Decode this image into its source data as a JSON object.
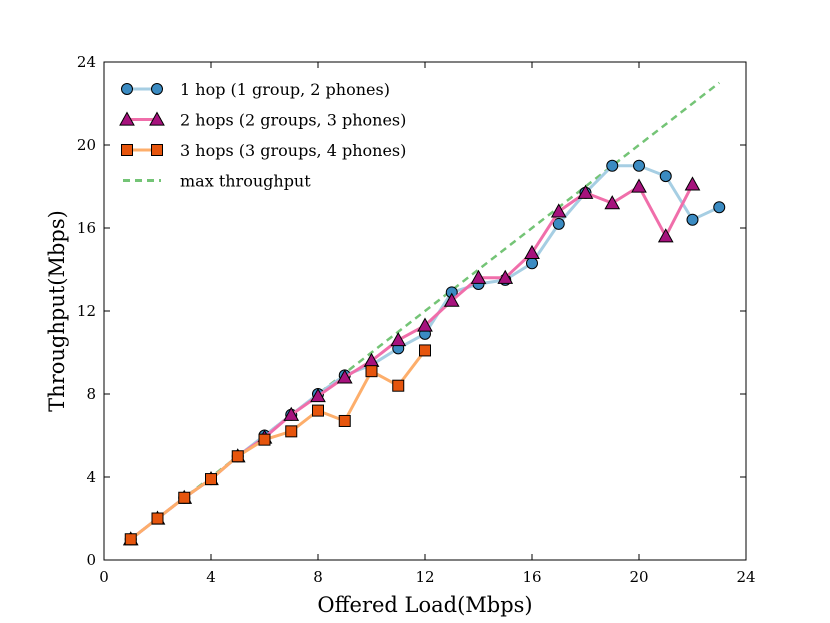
{
  "chart_data": {
    "type": "line",
    "title": "",
    "xlabel": "Offered Load(Mbps)",
    "ylabel": "Throughput(Mbps)",
    "xlim": [
      0,
      24
    ],
    "ylim": [
      0,
      24
    ],
    "xticks": [
      0,
      4,
      8,
      12,
      16,
      20,
      24
    ],
    "yticks": [
      0,
      4,
      8,
      12,
      16,
      20,
      24
    ],
    "grid": false,
    "legend_position": "top-left",
    "series": [
      {
        "name": "1 hop (1 group, 2 phones)",
        "line_color": "#a6cee3",
        "marker": "circle",
        "marker_color": "#3b8bc2",
        "dashed": false,
        "x": [
          1,
          2,
          3,
          4,
          5,
          6,
          7,
          8,
          9,
          10,
          11,
          12,
          13,
          14,
          15,
          16,
          17,
          18,
          19,
          20,
          21,
          22,
          23
        ],
        "y": [
          1.0,
          2.0,
          3.0,
          3.9,
          5.0,
          6.0,
          7.0,
          8.0,
          8.9,
          9.4,
          10.2,
          10.9,
          12.9,
          13.3,
          13.5,
          14.3,
          16.2,
          17.7,
          19.0,
          19.0,
          18.5,
          16.4,
          17.0
        ]
      },
      {
        "name": "2 hops (2 groups, 3 phones)",
        "line_color": "#f06eaa",
        "marker": "triangle",
        "marker_color": "#a6127d",
        "dashed": false,
        "x": [
          1,
          2,
          3,
          4,
          5,
          6,
          7,
          8,
          9,
          10,
          11,
          12,
          13,
          14,
          15,
          16,
          17,
          18,
          19,
          20,
          21,
          22
        ],
        "y": [
          1.0,
          2.0,
          3.0,
          3.9,
          5.0,
          5.9,
          7.0,
          7.9,
          8.8,
          9.6,
          10.6,
          11.3,
          12.5,
          13.6,
          13.6,
          14.8,
          16.8,
          17.7,
          17.2,
          18.0,
          15.6,
          18.1
        ]
      },
      {
        "name": "3 hops (3 groups, 4 phones)",
        "line_color": "#fdae6b",
        "marker": "square",
        "marker_color": "#e6550d",
        "dashed": false,
        "x": [
          1,
          2,
          3,
          4,
          5,
          6,
          7,
          8,
          9,
          10,
          11,
          12
        ],
        "y": [
          1.0,
          2.0,
          3.0,
          3.9,
          5.0,
          5.8,
          6.2,
          7.2,
          6.7,
          9.1,
          8.4,
          10.1
        ]
      },
      {
        "name": "max throughput",
        "line_color": "#74c476",
        "marker": "none",
        "marker_color": "",
        "dashed": true,
        "x": [
          1,
          23
        ],
        "y": [
          1,
          23
        ]
      }
    ]
  }
}
